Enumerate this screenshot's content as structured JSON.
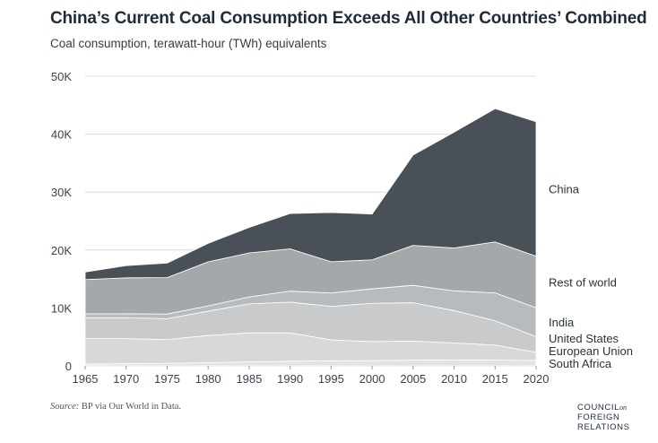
{
  "title": "China’s Current Coal Consumption Exceeds All Other Countries’ Combined",
  "subtitle": "Coal consumption, terawatt-hour (TWh) equivalents",
  "source_label": "Source:",
  "source_text": "BP via Our World in Data.",
  "logo": {
    "line1": "COUNCIL",
    "on": "on",
    "line2": "FOREIGN",
    "line3": "RELATIONS"
  },
  "colors": {
    "China": "#4a5058",
    "Rest of world": "#a5a8ab",
    "India": "#b8bbbe",
    "United States": "#c8cacc",
    "European Union": "#d6d8da",
    "South Africa": "#e2e3e5",
    "grid": "#dcdcdc",
    "separator": "#ffffff"
  },
  "chart_data": {
    "type": "area",
    "stacked": true,
    "title": "China’s Current Coal Consumption Exceeds All Other Countries’ Combined",
    "subtitle": "Coal consumption, terawatt-hour (TWh) equivalents",
    "xlabel": "",
    "ylabel": "",
    "xlim": [
      1965,
      2020
    ],
    "ylim": [
      0,
      50000
    ],
    "x_ticks": [
      1965,
      1970,
      1975,
      1980,
      1985,
      1990,
      1995,
      2000,
      2005,
      2010,
      2015,
      2020
    ],
    "y_ticks": [
      0,
      10000,
      20000,
      30000,
      40000,
      50000
    ],
    "y_tick_labels": [
      "0",
      "10K",
      "20K",
      "30K",
      "40K",
      "50K"
    ],
    "grid": "horizontal",
    "legend": "direct labels at right",
    "x": [
      1965,
      1970,
      1975,
      1980,
      1985,
      1990,
      1995,
      2000,
      2005,
      2010,
      2015,
      2020
    ],
    "series": [
      {
        "name": "South Africa",
        "values": [
          300,
          400,
          450,
          550,
          700,
          800,
          880,
          900,
          1000,
          1050,
          1000,
          950
        ]
      },
      {
        "name": "European Union",
        "values": [
          4400,
          4300,
          4100,
          4700,
          5000,
          4900,
          3600,
          3300,
          3300,
          2900,
          2600,
          1400
        ]
      },
      {
        "name": "United States",
        "values": [
          3600,
          3600,
          3600,
          4200,
          5000,
          5300,
          5800,
          6600,
          6600,
          5600,
          4200,
          2700
        ]
      },
      {
        "name": "India",
        "values": [
          700,
          700,
          800,
          900,
          1200,
          1900,
          2300,
          2500,
          3000,
          3400,
          4800,
          5000
        ]
      },
      {
        "name": "Rest of world",
        "values": [
          5900,
          6200,
          6300,
          7600,
          7600,
          7300,
          5400,
          5000,
          6900,
          7400,
          8800,
          8900
        ]
      },
      {
        "name": "China",
        "values": [
          1300,
          2100,
          2500,
          3200,
          4400,
          6100,
          8500,
          7900,
          15600,
          20000,
          23000,
          23200
        ]
      }
    ],
    "labels": [
      {
        "text": "China",
        "series": "China"
      },
      {
        "text": "Rest of world",
        "series": "Rest of world"
      },
      {
        "text": "India",
        "series": "India"
      },
      {
        "text": "United States",
        "series": "United States"
      },
      {
        "text": "European Union",
        "series": "European Union"
      },
      {
        "text": "South Africa",
        "series": "South Africa"
      }
    ]
  }
}
